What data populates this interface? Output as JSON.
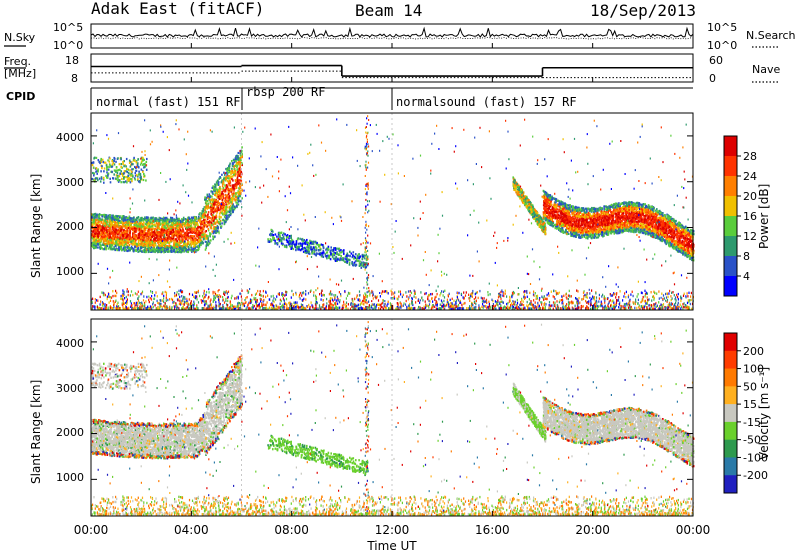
{
  "header": {
    "station": "Adak East (fitACF)",
    "beam": "Beam 14",
    "date": "18/Sep/2013"
  },
  "left_labels": {
    "nsky": "N.Sky",
    "freq_line1": "Freq.",
    "freq_line2": "[MHz]",
    "cpid": "CPID"
  },
  "right_labels": {
    "nsearch": "N.Search",
    "nave": "Nave"
  },
  "chart_data": [
    {
      "type": "line",
      "title": "",
      "series": [
        {
          "name": "N.Sky"
        },
        {
          "name": "N.Search"
        }
      ],
      "left_ticks": [
        "10^5",
        "10^0"
      ],
      "right_ticks": [
        "10^5",
        "10^0"
      ]
    },
    {
      "type": "line",
      "series": [
        {
          "name": "Freq.",
          "unit": "MHz",
          "segments": [
            {
              "x0": 0,
              "x1": 6,
              "y": 15.5
            },
            {
              "x0": 6,
              "x1": 10.0,
              "y": 16.0
            },
            {
              "x0": 10.0,
              "x1": 18.0,
              "y": 10.2
            },
            {
              "x0": 18.0,
              "x1": 24,
              "y": 14.8
            }
          ]
        },
        {
          "name": "Nave",
          "segments": [
            {
              "x0": 0,
              "x1": 6,
              "y": 21
            },
            {
              "x0": 6,
              "x1": 10.0,
              "y": 25
            },
            {
              "x0": 10.0,
              "x1": 18.0,
              "y": 10
            },
            {
              "x0": 18.0,
              "x1": 24,
              "y": 10
            }
          ]
        }
      ],
      "left_ticks": [
        "18",
        "8"
      ],
      "right_ticks": [
        "60",
        "0"
      ]
    },
    {
      "type": "table",
      "name": "CPID",
      "programs": [
        {
          "label": "normal (fast) 151 RF",
          "start": 0,
          "end": 6
        },
        {
          "label": "rbsp 200 RF",
          "start": 6,
          "end": 12
        },
        {
          "label": "normalsound (fast) 157 RF",
          "start": 12,
          "end": 24
        }
      ]
    },
    {
      "type": "heatmap",
      "ylabel": "Slant Range [km]",
      "yticks": [
        "1000",
        "2000",
        "3000",
        "4000"
      ],
      "ylim": [
        200,
        4500
      ],
      "xlim": [
        0,
        24
      ],
      "colorbar": {
        "label": "Power [dB]",
        "ticks": [
          "4",
          "8",
          "12",
          "16",
          "20",
          "24",
          "28"
        ],
        "colors": [
          "#0000ff",
          "#2a52c8",
          "#2e9a6e",
          "#5acd3c",
          "#f0c000",
          "#ff7f00",
          "#ff3300",
          "#dd0000"
        ]
      }
    },
    {
      "type": "heatmap",
      "ylabel": "Slant Range [km]",
      "yticks": [
        "1000",
        "2000",
        "3000",
        "4000"
      ],
      "ylim": [
        200,
        4500
      ],
      "xlim": [
        0,
        24
      ],
      "colorbar": {
        "label": "Velocity [m s⁻¹]",
        "ticks": [
          "200",
          "100",
          "50",
          "15",
          "-15",
          "-50",
          "-100",
          "-200"
        ],
        "colors": [
          "#2020c0",
          "#2a7aa8",
          "#2e9a4e",
          "#6ad02c",
          "#c8c8c0",
          "#ffb020",
          "#ff7a00",
          "#ff3c00",
          "#e00000"
        ]
      }
    }
  ],
  "xaxis": {
    "label": "Time UT",
    "ticks": [
      "00:00",
      "04:00",
      "08:00",
      "12:00",
      "16:00",
      "20:00",
      "00:00"
    ]
  }
}
